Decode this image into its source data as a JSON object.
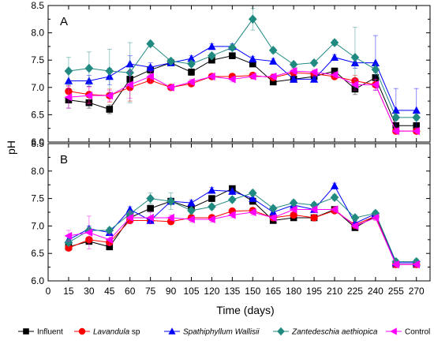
{
  "figure": {
    "ylabel": "pH",
    "xlabel": "Time (days)"
  },
  "chart_data": [
    {
      "type": "line",
      "panel_label": "A",
      "ylabel": "pH",
      "xlabel": "Time (days)",
      "x": [
        15,
        30,
        45,
        60,
        75,
        90,
        105,
        120,
        135,
        150,
        165,
        180,
        195,
        210,
        225,
        240,
        255,
        270
      ],
      "xlim": [
        0,
        280
      ],
      "ylim": [
        6.0,
        8.5
      ],
      "yticks": [
        "6.0",
        "6.5",
        "7.0",
        "7.5",
        "8.0",
        "8.5"
      ],
      "series": [
        {
          "name": "Influent",
          "color": "#000000",
          "marker": "square",
          "values": [
            6.77,
            6.72,
            6.6,
            7.15,
            7.32,
            7.45,
            7.28,
            7.5,
            7.58,
            7.43,
            7.1,
            7.15,
            7.2,
            7.3,
            6.97,
            7.18,
            6.3,
            6.3
          ],
          "err": [
            0.15,
            0.1,
            0.08,
            0.1,
            0.08,
            0.05,
            0.06,
            0.05,
            0.05,
            0.05,
            0.05,
            0.05,
            0.05,
            0.05,
            0.1,
            0.1,
            0.05,
            0.05
          ]
        },
        {
          "name": "Lavandula sp",
          "color": "#ff0000",
          "marker": "circle",
          "values": [
            6.93,
            6.87,
            6.85,
            7.0,
            7.13,
            7.0,
            7.07,
            7.2,
            7.2,
            7.22,
            7.18,
            7.27,
            7.25,
            7.2,
            7.12,
            7.05,
            6.2,
            6.2
          ],
          "err": [
            0.1,
            0.15,
            0.12,
            0.25,
            0.05,
            0.05,
            0.05,
            0.05,
            0.05,
            0.05,
            0.05,
            0.05,
            0.05,
            0.05,
            0.1,
            0.1,
            0.05,
            0.05
          ]
        },
        {
          "name": "Spathiphyllum Wallisii",
          "color": "#0000ff",
          "marker": "triangle-up",
          "values": [
            7.12,
            7.12,
            7.2,
            7.43,
            7.37,
            7.45,
            7.53,
            7.75,
            7.75,
            7.52,
            7.48,
            7.15,
            7.15,
            7.55,
            7.45,
            7.45,
            6.58,
            6.58
          ],
          "err": [
            0.15,
            0.1,
            0.15,
            0.15,
            0.08,
            0.05,
            0.05,
            0.05,
            0.05,
            0.05,
            0.05,
            0.05,
            0.05,
            0.05,
            0.1,
            0.5,
            0.4,
            0.4
          ]
        },
        {
          "name": "Zantedeschia aethiopica",
          "color": "#208a80",
          "marker": "diamond",
          "values": [
            7.3,
            7.35,
            7.3,
            7.27,
            7.8,
            7.48,
            7.43,
            7.58,
            7.73,
            8.25,
            7.68,
            7.42,
            7.45,
            7.82,
            7.55,
            7.33,
            6.45,
            6.45
          ],
          "err": [
            0.25,
            0.3,
            0.4,
            0.55,
            0.05,
            0.05,
            0.05,
            0.05,
            0.05,
            0.2,
            0.05,
            0.05,
            0.05,
            0.05,
            0.55,
            0.1,
            0.05,
            0.05
          ]
        },
        {
          "name": "Control",
          "color": "#ff00ff",
          "marker": "triangle-left",
          "values": [
            6.82,
            6.85,
            6.85,
            7.05,
            7.2,
            7.0,
            7.1,
            7.2,
            7.15,
            7.2,
            7.2,
            7.3,
            7.28,
            7.23,
            7.05,
            7.05,
            6.2,
            6.2
          ],
          "err": [
            0.2,
            0.15,
            0.1,
            0.25,
            0.1,
            0.05,
            0.05,
            0.05,
            0.05,
            0.05,
            0.05,
            0.05,
            0.05,
            0.05,
            0.1,
            0.1,
            0.05,
            0.05
          ]
        }
      ]
    },
    {
      "type": "line",
      "panel_label": "B",
      "ylabel": "pH",
      "xlabel": "Time (days)",
      "x": [
        15,
        30,
        45,
        60,
        75,
        90,
        105,
        120,
        135,
        150,
        165,
        180,
        195,
        210,
        225,
        240,
        255,
        270
      ],
      "xticks": [
        "0",
        "15",
        "30",
        "45",
        "60",
        "75",
        "90",
        "105",
        "120",
        "135",
        "150",
        "165",
        "180",
        "195",
        "210",
        "225",
        "240",
        "255",
        "270"
      ],
      "xlim": [
        0,
        280
      ],
      "ylim": [
        6.0,
        8.5
      ],
      "yticks": [
        "6.0",
        "6.5",
        "7.0",
        "7.5",
        "8.0",
        "8.5"
      ],
      "series": [
        {
          "name": "Influent",
          "color": "#000000",
          "marker": "square",
          "values": [
            6.62,
            6.72,
            6.62,
            7.15,
            7.32,
            7.45,
            7.33,
            7.5,
            7.68,
            7.45,
            7.1,
            7.15,
            7.15,
            7.3,
            6.97,
            7.18,
            6.3,
            6.3
          ],
          "err": [
            0.05,
            0.05,
            0.05,
            0.05,
            0.05,
            0.05,
            0.05,
            0.05,
            0.05,
            0.05,
            0.05,
            0.05,
            0.05,
            0.05,
            0.05,
            0.05,
            0.05,
            0.05
          ]
        },
        {
          "name": "Lavandula sp",
          "color": "#ff0000",
          "marker": "circle",
          "values": [
            6.6,
            6.75,
            6.7,
            7.1,
            7.1,
            7.08,
            7.15,
            7.15,
            7.27,
            7.28,
            7.15,
            7.2,
            7.15,
            7.28,
            7.02,
            7.18,
            6.3,
            6.3
          ],
          "err": [
            0.05,
            0.05,
            0.05,
            0.05,
            0.05,
            0.05,
            0.05,
            0.05,
            0.05,
            0.05,
            0.05,
            0.05,
            0.05,
            0.05,
            0.05,
            0.05,
            0.05,
            0.05
          ]
        },
        {
          "name": "Spathiphyllum Wallisii",
          "color": "#0000ff",
          "marker": "triangle-up",
          "values": [
            6.75,
            6.95,
            6.88,
            7.3,
            7.1,
            7.45,
            7.42,
            7.65,
            7.63,
            7.5,
            7.25,
            7.38,
            7.3,
            7.73,
            7.05,
            7.22,
            6.33,
            6.33
          ],
          "err": [
            0.05,
            0.05,
            0.05,
            0.05,
            0.05,
            0.05,
            0.05,
            0.05,
            0.05,
            0.05,
            0.05,
            0.05,
            0.05,
            0.05,
            0.05,
            0.05,
            0.05,
            0.05
          ]
        },
        {
          "name": "Zantedeschia aethiopica",
          "color": "#208a80",
          "marker": "diamond",
          "values": [
            6.7,
            6.92,
            6.92,
            7.22,
            7.5,
            7.45,
            7.28,
            7.35,
            7.48,
            7.6,
            7.32,
            7.42,
            7.38,
            7.52,
            7.15,
            7.23,
            6.35,
            6.35
          ],
          "err": [
            0.05,
            0.05,
            0.05,
            0.05,
            0.1,
            0.15,
            0.05,
            0.05,
            0.05,
            0.05,
            0.05,
            0.05,
            0.05,
            0.05,
            0.05,
            0.05,
            0.05,
            0.05
          ]
        },
        {
          "name": "Control",
          "color": "#ff00ff",
          "marker": "triangle-left",
          "values": [
            6.82,
            6.88,
            6.75,
            7.15,
            7.15,
            7.15,
            7.12,
            7.12,
            7.2,
            7.25,
            7.15,
            7.3,
            7.3,
            7.3,
            7.0,
            7.15,
            6.3,
            6.3
          ],
          "err": [
            0.1,
            0.3,
            0.1,
            0.1,
            0.1,
            0.05,
            0.05,
            0.05,
            0.05,
            0.05,
            0.05,
            0.05,
            0.05,
            0.05,
            0.05,
            0.05,
            0.05,
            0.05
          ]
        }
      ]
    }
  ],
  "legend": [
    {
      "label": "Influent",
      "color": "#000000",
      "marker": "square",
      "italic": false
    },
    {
      "label": "Lavandula",
      "suffix": " sp",
      "color": "#ff0000",
      "marker": "circle",
      "italic": true
    },
    {
      "label": "Spathiphyllum Wallisii",
      "suffix": "",
      "color": "#0000ff",
      "marker": "triangle-up",
      "italic": true
    },
    {
      "label": "Zantedeschia aethiopica",
      "suffix": "",
      "color": "#208a80",
      "marker": "diamond",
      "italic": true
    },
    {
      "label": "Control",
      "color": "#ff00ff",
      "marker": "triangle-left",
      "italic": false
    }
  ]
}
